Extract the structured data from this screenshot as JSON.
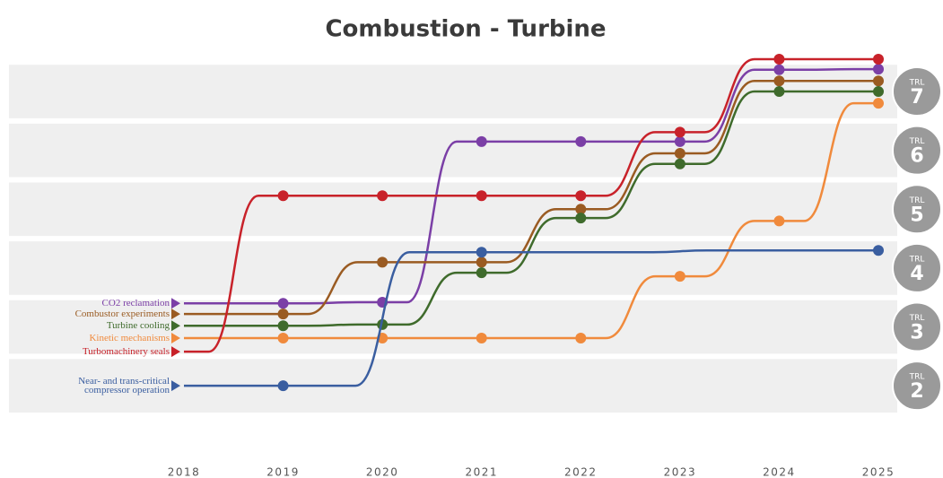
{
  "chart_data": {
    "type": "line",
    "title": "Combustion - Turbine",
    "xlim": [
      2018,
      2025
    ],
    "xticks": [
      2018,
      2019,
      2020,
      2021,
      2022,
      2023,
      2024,
      2025
    ],
    "ylim": [
      1.5,
      7.65
    ],
    "yticks": [
      2,
      3,
      4,
      5,
      6,
      7
    ],
    "ytick_prefix": "TRL",
    "series": [
      {
        "name": "CO2 reclamation",
        "color": "#7b3fa6",
        "x": [
          2018,
          2019,
          2020,
          2021,
          2022,
          2023,
          2024,
          2025
        ],
        "values": [
          3.4,
          3.4,
          3.42,
          6.15,
          6.15,
          6.15,
          7.37,
          7.38
        ]
      },
      {
        "name": "Combustor experiments",
        "color": "#9a5b22",
        "x": [
          2018,
          2019,
          2020,
          2021,
          2022,
          2023,
          2024,
          2025
        ],
        "values": [
          3.22,
          3.22,
          4.1,
          4.1,
          5.0,
          5.95,
          7.18,
          7.18
        ]
      },
      {
        "name": "Turbine cooling",
        "color": "#3f6b2c",
        "x": [
          2018,
          2019,
          2020,
          2021,
          2022,
          2023,
          2024,
          2025
        ],
        "values": [
          3.02,
          3.02,
          3.04,
          3.92,
          4.85,
          5.77,
          7.0,
          7.0
        ]
      },
      {
        "name": "Kinetic mechanisms",
        "color": "#f08a3c",
        "x": [
          2018,
          2019,
          2020,
          2021,
          2022,
          2023,
          2024,
          2025
        ],
        "values": [
          2.81,
          2.81,
          2.81,
          2.81,
          2.81,
          3.86,
          4.8,
          6.8
        ]
      },
      {
        "name": "Turbomachinery seals",
        "color": "#c8222a",
        "x": [
          2018,
          2019,
          2020,
          2021,
          2022,
          2023,
          2024,
          2025
        ],
        "values": [
          2.58,
          5.23,
          5.23,
          5.23,
          5.23,
          6.31,
          7.55,
          7.55
        ]
      },
      {
        "name": "Near- and trans-critical compressor operation",
        "color": "#3a5ea0",
        "x": [
          2018,
          2019,
          2021,
          2025
        ],
        "values": [
          2.0,
          2.0,
          4.27,
          4.3
        ]
      }
    ]
  }
}
